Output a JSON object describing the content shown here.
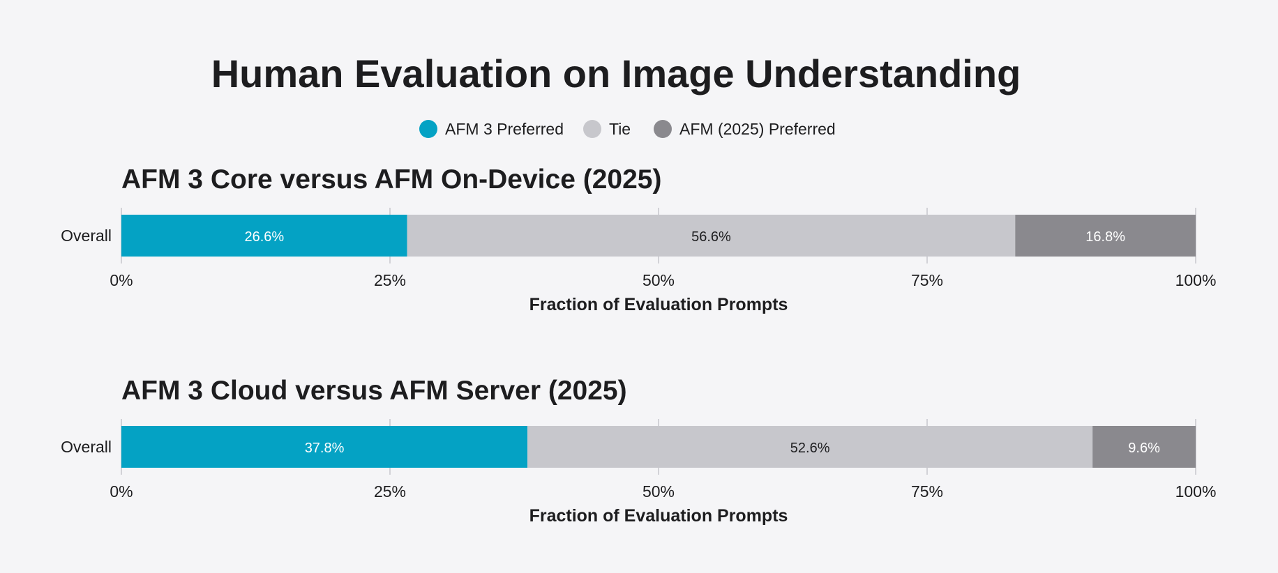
{
  "title": "Human Evaluation on Image Understanding",
  "legend": [
    {
      "label": "AFM 3 Preferred",
      "color": "#04a2c4"
    },
    {
      "label": "Tie",
      "color": "#c7c7cc"
    },
    {
      "label": "AFM (2025) Preferred",
      "color": "#8a898e"
    }
  ],
  "chart_data": [
    {
      "type": "bar",
      "orientation": "horizontal-stacked",
      "title": "AFM 3 Core versus AFM On-Device (2025)",
      "categories": [
        "Overall"
      ],
      "series": [
        {
          "name": "AFM 3 Preferred",
          "values": [
            26.6
          ],
          "label": "26.6%",
          "color": "#04a2c4"
        },
        {
          "name": "Tie",
          "values": [
            56.6
          ],
          "label": "56.6%",
          "color": "#c7c7cc"
        },
        {
          "name": "AFM (2025) Preferred",
          "values": [
            16.8
          ],
          "label": "16.8%",
          "color": "#8a898e"
        }
      ],
      "xlabel": "Fraction of Evaluation Prompts",
      "xlim": [
        0,
        100
      ],
      "xticks": [
        0,
        25,
        50,
        75,
        100
      ],
      "xtick_labels": [
        "0%",
        "25%",
        "50%",
        "75%",
        "100%"
      ],
      "grid": true,
      "legend": "top-center"
    },
    {
      "type": "bar",
      "orientation": "horizontal-stacked",
      "title": "AFM 3 Cloud versus AFM Server (2025)",
      "categories": [
        "Overall"
      ],
      "series": [
        {
          "name": "AFM 3 Preferred",
          "values": [
            37.8
          ],
          "label": "37.8%",
          "color": "#04a2c4"
        },
        {
          "name": "Tie",
          "values": [
            52.6
          ],
          "label": "52.6%",
          "color": "#c7c7cc"
        },
        {
          "name": "AFM (2025) Preferred",
          "values": [
            9.6
          ],
          "label": "9.6%",
          "color": "#8a898e"
        }
      ],
      "xlabel": "Fraction of Evaluation Prompts",
      "xlim": [
        0,
        100
      ],
      "xticks": [
        0,
        25,
        50,
        75,
        100
      ],
      "xtick_labels": [
        "0%",
        "25%",
        "50%",
        "75%",
        "100%"
      ],
      "grid": true,
      "legend": "top-center"
    }
  ]
}
